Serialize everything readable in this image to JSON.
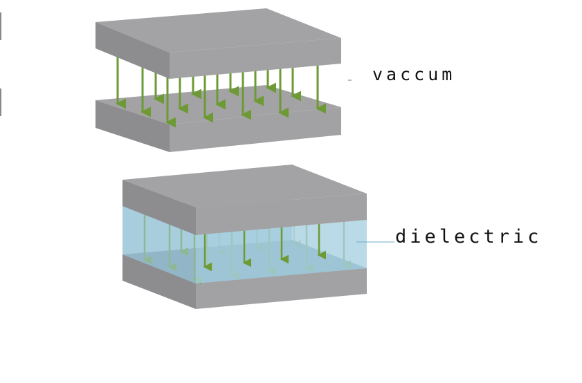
{
  "labels": {
    "vacuum": "vaccum",
    "dielectric": "dielectric"
  },
  "colors": {
    "plate_top": "#a3a3a5",
    "plate_front": "#8d8d8f",
    "plate_right": "#a2a2a4",
    "plate_inner": "#7f7f81",
    "field_arrow": "#6e9a35",
    "dielectric_light": "#a9d1e1",
    "dielectric_back": "#89b7ca",
    "dielectric_floor": "#6f94a6",
    "leader_line": "#6aaec8"
  },
  "icons": {
    "field_arrow": "down-arrow"
  }
}
